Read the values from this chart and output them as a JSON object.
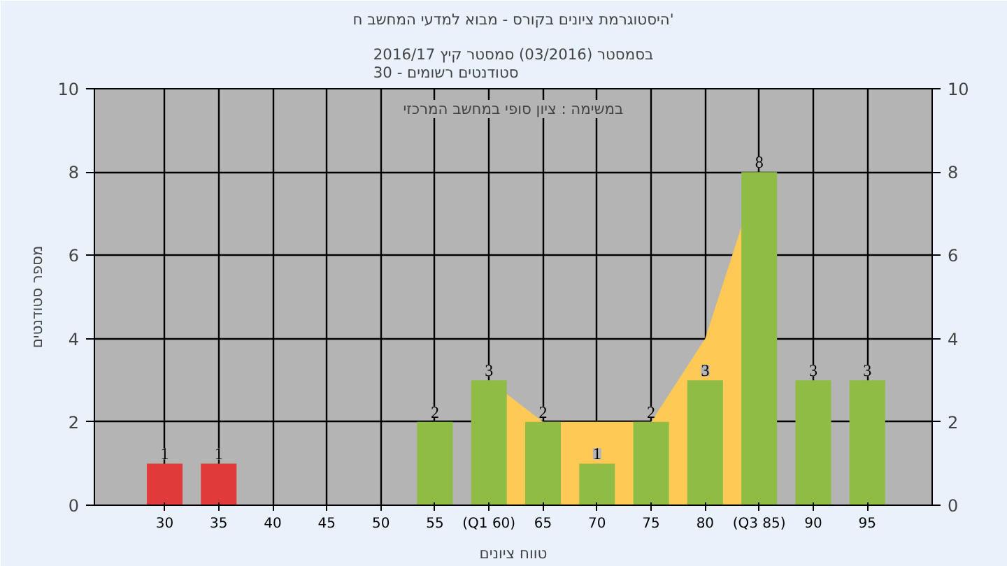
{
  "chart_data": {
    "type": "bar",
    "title": "היסטוגרמת ציונים בקורס - מבוא למדעי המחשב ח'",
    "subtitle": "בסמסטר (03/2016) סמסטר קיץ 2016/17\nסטודנטים רשומים - 30",
    "xlabel": "טווח ציונים",
    "ylabel": "מספר סטודנטים",
    "annotations": [
      "במשימה : ציון סופי במחשב המרכזי"
    ],
    "x": [
      30,
      35,
      40,
      45,
      50,
      55,
      60,
      65,
      70,
      75,
      80,
      85,
      90,
      95
    ],
    "series": [
      {
        "type": "area",
        "x": [
          60,
          65,
          70,
          75,
          80,
          85
        ],
        "values": [
          3,
          2,
          2,
          2,
          4,
          8
        ],
        "color": "#ffc955"
      },
      {
        "values": [
          1,
          1,
          null,
          null,
          null,
          2,
          3,
          2,
          1,
          2,
          3,
          8,
          3,
          3
        ],
        "value_labels": [
          "1",
          "1",
          null,
          null,
          null,
          "2",
          "3",
          "2",
          "1",
          "2",
          "3",
          "8",
          "3",
          "3"
        ],
        "colors": [
          "#e03a3a",
          "#e03a3a",
          "#8fbc45",
          "#8fbc45",
          "#8fbc45",
          "#8fbc45",
          "#8fbc45",
          "#8fbc45",
          "#8fbc45",
          "#8fbc45",
          "#8fbc45",
          "#8fbc45",
          "#8fbc45",
          "#8fbc45"
        ]
      }
    ],
    "xlim": [
      23.5,
      101
    ],
    "xticks": [
      30,
      35,
      40,
      45,
      50,
      55,
      {
        "value": 60,
        "label": "(Q1 60)"
      },
      65,
      70,
      75,
      80,
      {
        "value": 85,
        "label": "(Q3 85)"
      },
      90,
      95
    ],
    "ylim": [
      0,
      10
    ],
    "yticks": [
      0,
      2,
      4,
      6,
      8,
      10
    ],
    "y2lim": [
      0,
      10
    ],
    "y2ticks": [
      0,
      2,
      4,
      6,
      8,
      10
    ],
    "grid": true
  }
}
